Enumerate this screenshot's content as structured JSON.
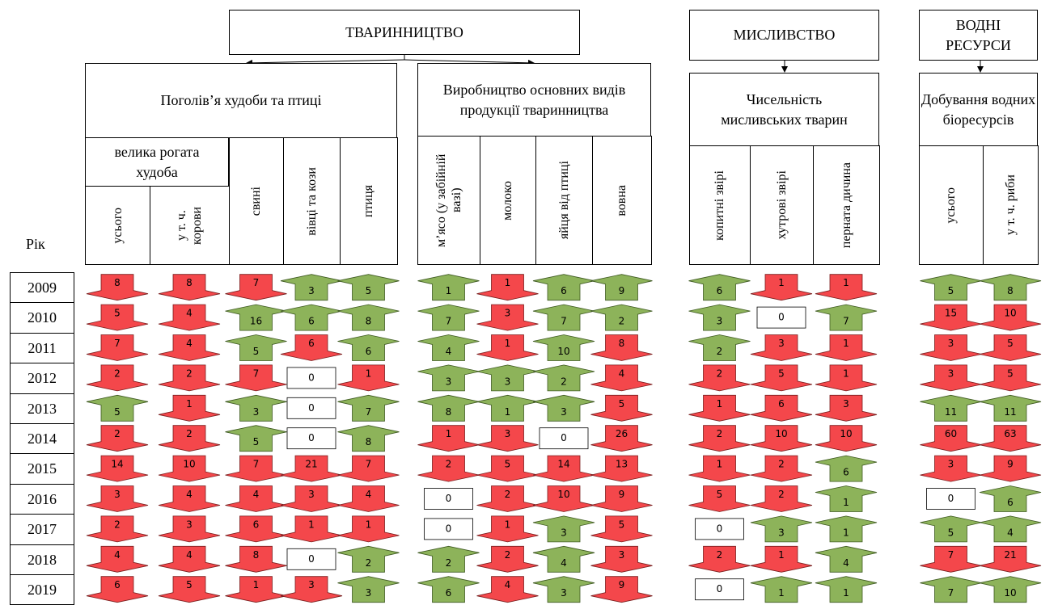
{
  "sections": {
    "livestock": "ТВАРИННИЦТВО",
    "hunting": "МИСЛИВСТВО",
    "water": "ВОДНІ РЕСУРСИ"
  },
  "groups": [
    "Поголів’я худоби та птиці",
    "Виробництво основних видів продукції тваринництва",
    "Чисельність мисливських тварин",
    "Добування водних біоресурсів"
  ],
  "cattle": "велика рогата худоба",
  "columns": [
    "усього",
    "у т. ч. корови",
    "свині",
    "вівці та кози",
    "птиця",
    "м’ясо (у забійній вазі)",
    "молоко",
    "яйця від птиці",
    "вовна",
    "копитні звірі",
    "хутрові звірі",
    "перната дичина",
    "усього",
    "у т. ч. риби"
  ],
  "year_label": "Рік",
  "rows": [
    {
      "year": "2009",
      "values": [
        8,
        8,
        7,
        3,
        5,
        1,
        1,
        6,
        9,
        6,
        1,
        1,
        5,
        8
      ],
      "trend": [
        "down",
        "down",
        "down",
        "up",
        "up",
        "up",
        "down",
        "up",
        "up",
        "up",
        "down",
        "down",
        "up",
        "up"
      ]
    },
    {
      "year": "2010",
      "values": [
        5,
        4,
        16,
        6,
        8,
        7,
        3,
        7,
        2,
        3,
        0,
        7,
        15,
        10
      ],
      "trend": [
        "down",
        "down",
        "up",
        "up",
        "up",
        "up",
        "down",
        "up",
        "up",
        "up",
        "flat",
        "up",
        "down",
        "down"
      ]
    },
    {
      "year": "2011",
      "values": [
        7,
        4,
        5,
        6,
        6,
        4,
        1,
        10,
        8,
        2,
        3,
        1,
        3,
        5
      ],
      "trend": [
        "down",
        "down",
        "up",
        "down",
        "up",
        "up",
        "down",
        "up",
        "down",
        "up",
        "down",
        "down",
        "down",
        "down"
      ]
    },
    {
      "year": "2012",
      "values": [
        2,
        2,
        7,
        0,
        1,
        3,
        3,
        2,
        4,
        2,
        5,
        1,
        3,
        5
      ],
      "trend": [
        "down",
        "down",
        "down",
        "flat",
        "down",
        "up",
        "up",
        "up",
        "down",
        "down",
        "down",
        "down",
        "down",
        "down"
      ]
    },
    {
      "year": "2013",
      "values": [
        5,
        1,
        3,
        0,
        7,
        8,
        1,
        3,
        5,
        1,
        6,
        3,
        11,
        11
      ],
      "trend": [
        "up",
        "down",
        "up",
        "flat",
        "up",
        "up",
        "up",
        "up",
        "down",
        "down",
        "down",
        "down",
        "up",
        "up"
      ]
    },
    {
      "year": "2014",
      "values": [
        2,
        2,
        5,
        0,
        8,
        1,
        3,
        0,
        26,
        2,
        10,
        10,
        60,
        63
      ],
      "trend": [
        "down",
        "down",
        "up",
        "flat",
        "up",
        "down",
        "down",
        "flat",
        "down",
        "down",
        "down",
        "down",
        "down",
        "down"
      ]
    },
    {
      "year": "2015",
      "values": [
        14,
        10,
        7,
        21,
        7,
        2,
        5,
        14,
        13,
        1,
        2,
        6,
        3,
        9
      ],
      "trend": [
        "down",
        "down",
        "down",
        "down",
        "down",
        "down",
        "down",
        "down",
        "down",
        "down",
        "down",
        "up",
        "down",
        "down"
      ]
    },
    {
      "year": "2016",
      "values": [
        3,
        4,
        4,
        3,
        4,
        0,
        2,
        10,
        9,
        5,
        2,
        1,
        0,
        6
      ],
      "trend": [
        "down",
        "down",
        "down",
        "down",
        "down",
        "flat",
        "down",
        "down",
        "down",
        "down",
        "down",
        "up",
        "flat",
        "up"
      ]
    },
    {
      "year": "2017",
      "values": [
        2,
        3,
        6,
        1,
        1,
        0,
        1,
        3,
        5,
        0,
        3,
        1,
        5,
        4
      ],
      "trend": [
        "down",
        "down",
        "down",
        "down",
        "down",
        "flat",
        "down",
        "up",
        "down",
        "flat",
        "up",
        "up",
        "up",
        "up"
      ]
    },
    {
      "year": "2018",
      "values": [
        4,
        4,
        8,
        0,
        2,
        2,
        2,
        4,
        3,
        2,
        1,
        4,
        7,
        21
      ],
      "trend": [
        "down",
        "down",
        "down",
        "flat",
        "up",
        "up",
        "down",
        "up",
        "down",
        "down",
        "down",
        "up",
        "down",
        "down"
      ]
    },
    {
      "year": "2019",
      "values": [
        6,
        5,
        1,
        3,
        3,
        6,
        4,
        3,
        9,
        0,
        1,
        1,
        7,
        10
      ],
      "trend": [
        "down",
        "down",
        "down",
        "down",
        "up",
        "up",
        "down",
        "up",
        "down",
        "flat",
        "up",
        "up",
        "up",
        "up"
      ]
    }
  ]
}
